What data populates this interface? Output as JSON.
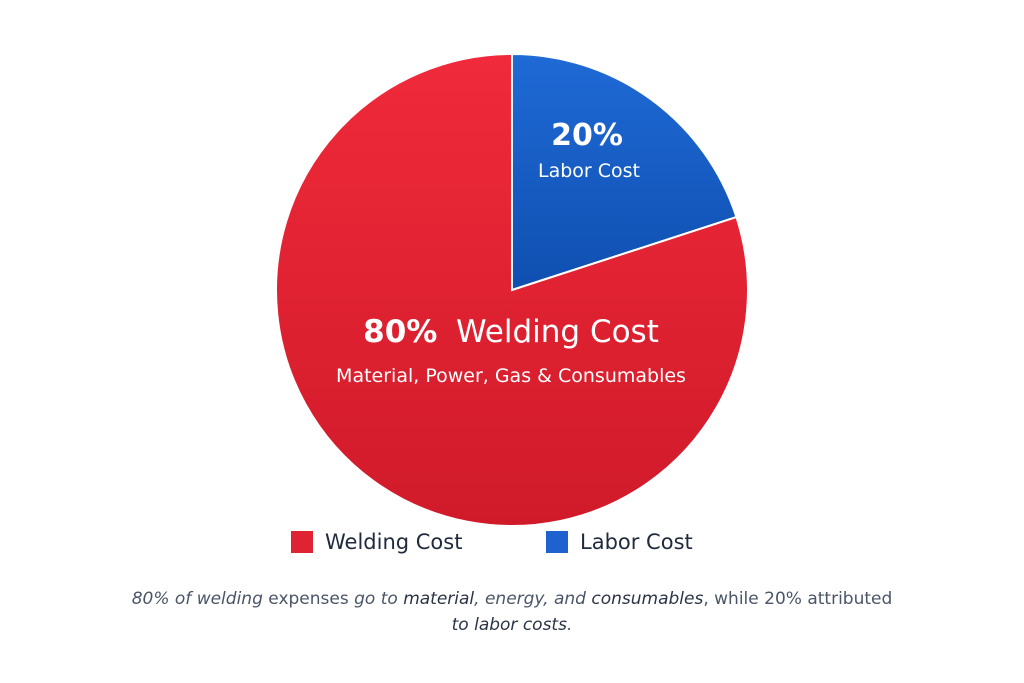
{
  "chart_data": {
    "type": "pie",
    "slices": [
      {
        "label": "Welding Cost",
        "value": 80,
        "pct_label": "80%",
        "title_label": "Welding Cost",
        "detail_label": "Material, Power, Gas & Consumables",
        "color": "#e02333"
      },
      {
        "label": "Labor Cost",
        "value": 20,
        "pct_label": "20%",
        "detail_label": "Labor Cost",
        "color": "#1a5fc4"
      }
    ],
    "legend": [
      {
        "label": "Welding Cost",
        "color": "#e02333"
      },
      {
        "label": "Labor Cost",
        "color": "#1e62d0"
      }
    ],
    "legend_position": "bottom"
  },
  "caption": {
    "part1": "80% of welding ",
    "part2": "expenses",
    "part3": " go to ",
    "part4": "material",
    "part5": ", energy, and ",
    "part6": "consumables",
    "part7": ", while 20% attributed",
    "part8": "to labor costs",
    "part9": "."
  }
}
